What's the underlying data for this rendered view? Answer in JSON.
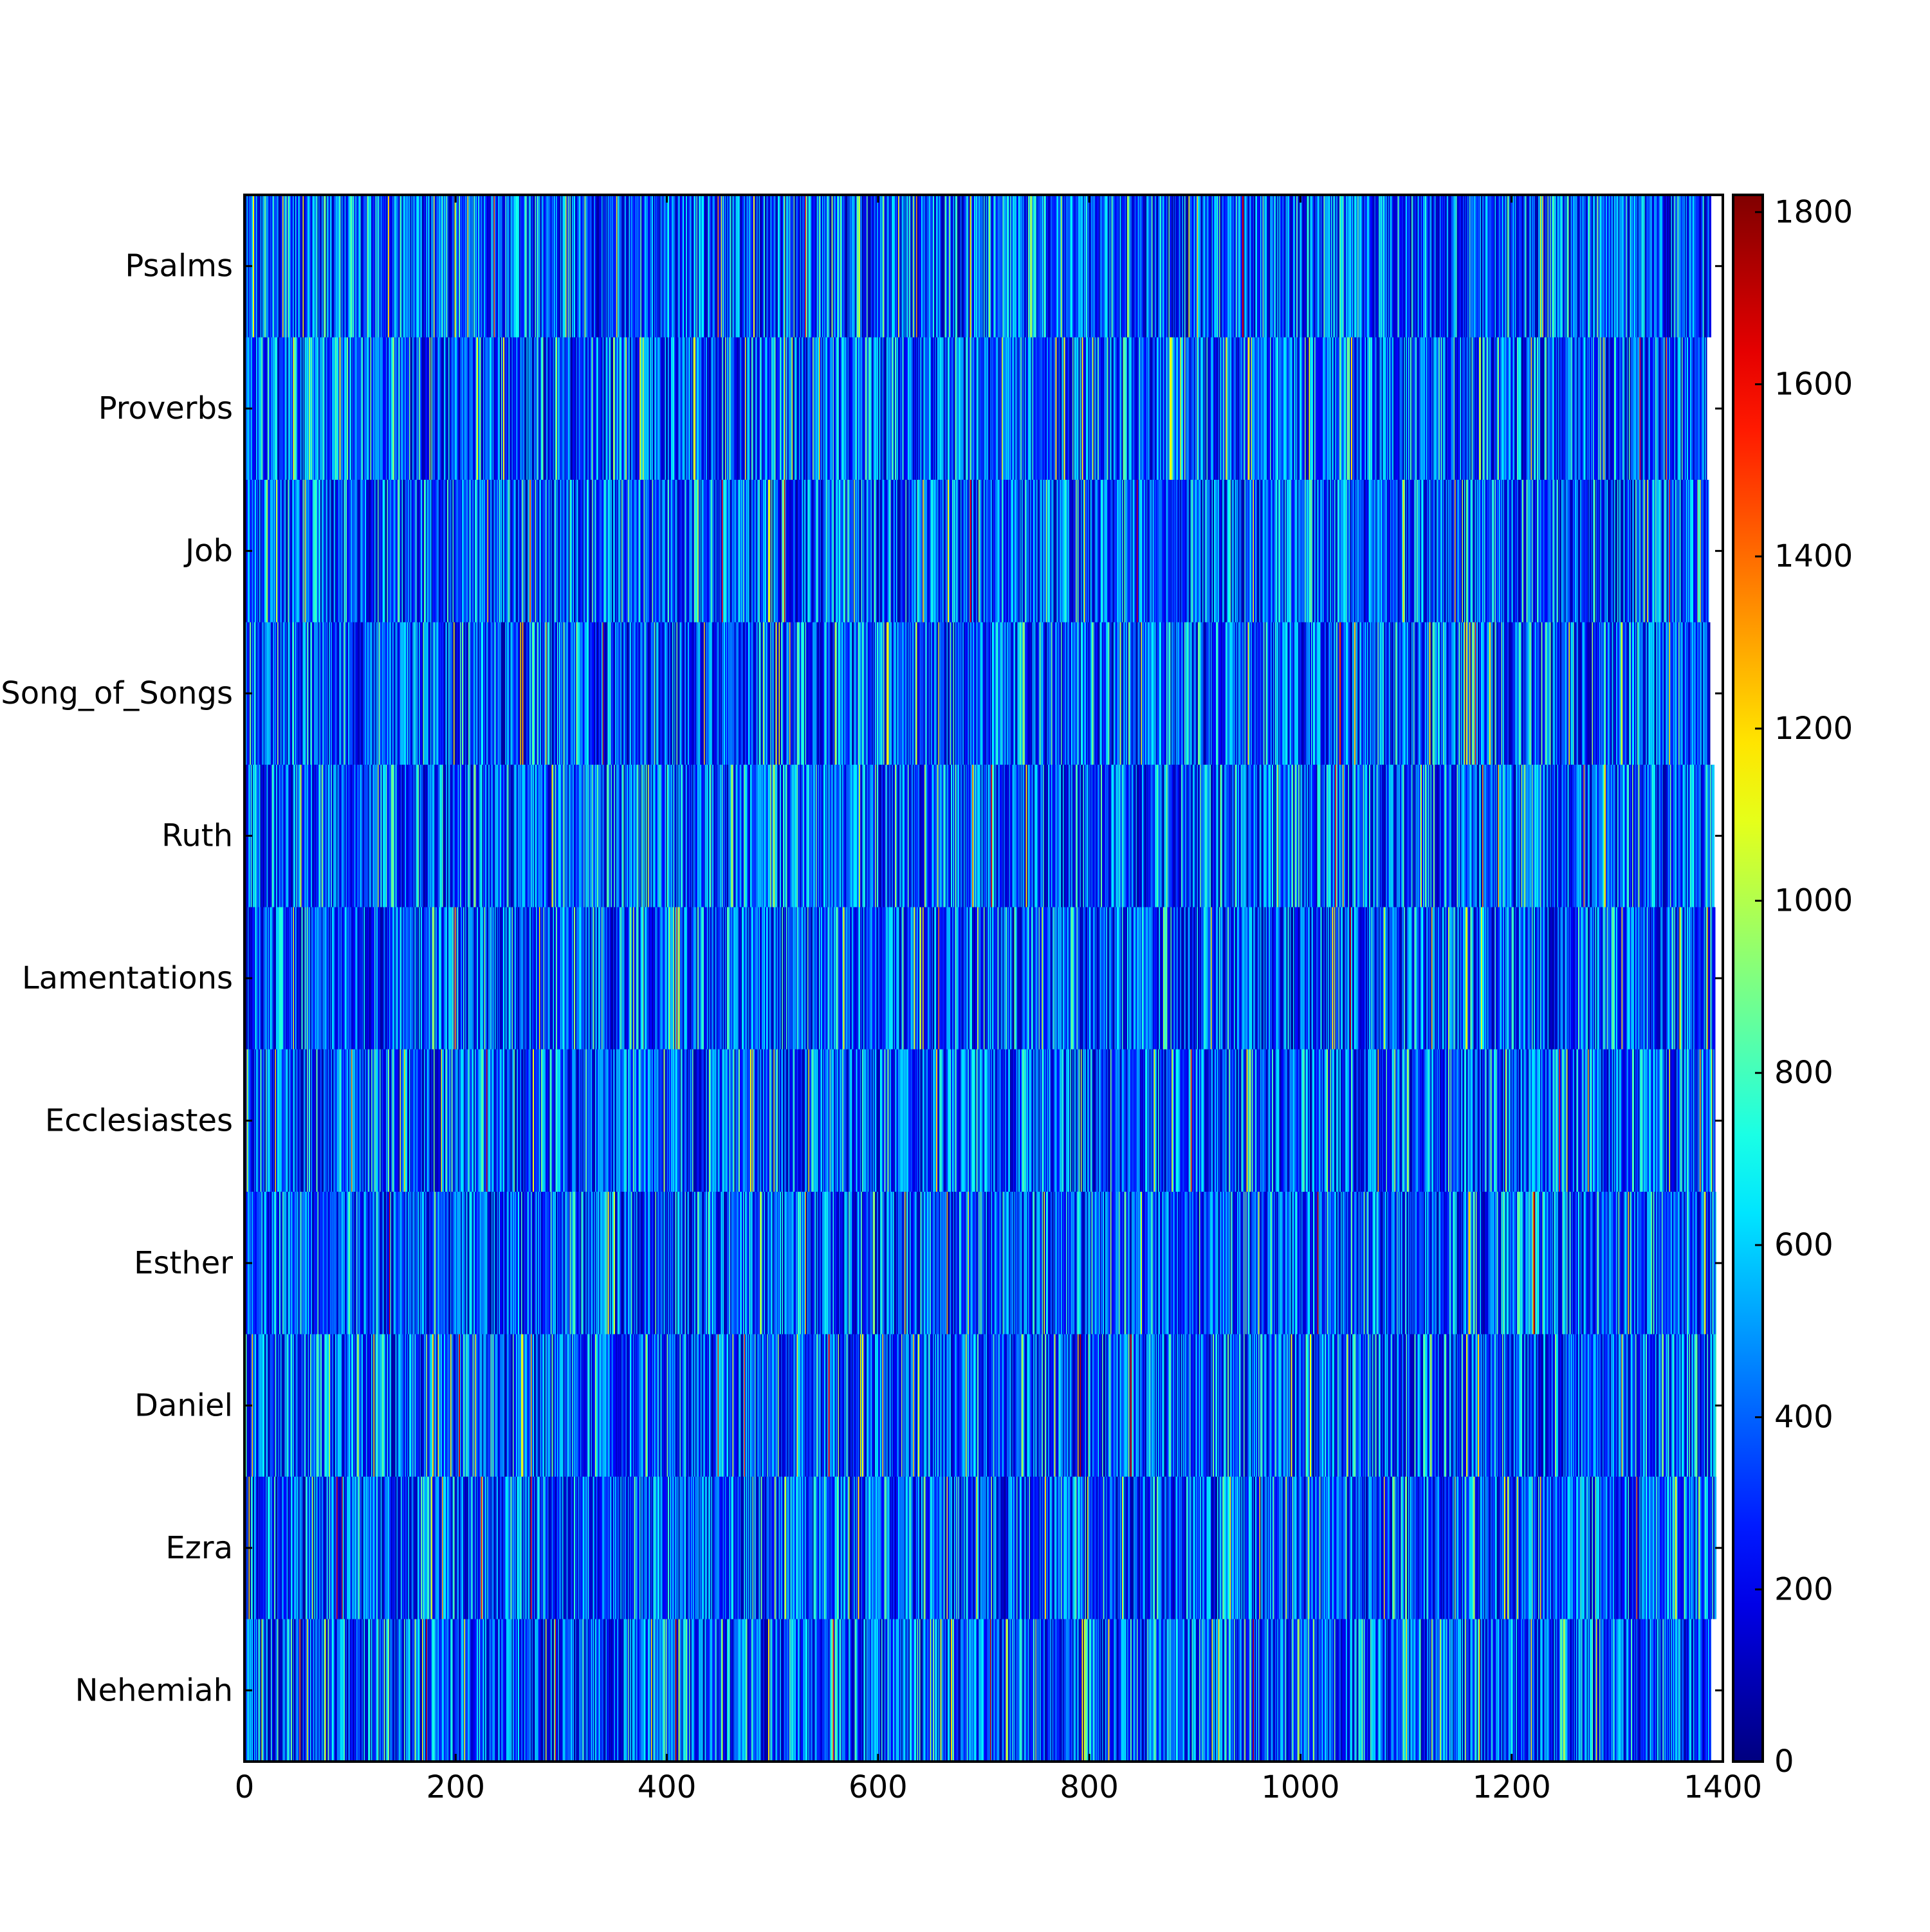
{
  "chart_data": {
    "type": "heatmap",
    "title": "",
    "xlabel": "",
    "ylabel": "",
    "rows": [
      "Psalms",
      "Proverbs",
      "Job",
      "Song_of_Songs",
      "Ruth",
      "Lamentations",
      "Ecclesiastes",
      "Esther",
      "Daniel",
      "Ezra",
      "Nehemiah"
    ],
    "x_range": [
      0,
      1400
    ],
    "row_lengths": [
      1389,
      1385,
      1387,
      1388,
      1392,
      1393,
      1393,
      1394,
      1394,
      1394,
      1389
    ],
    "x_ticks": [
      "0",
      "200",
      "400",
      "600",
      "800",
      "1000",
      "1200",
      "1400"
    ],
    "colorbar": {
      "range": [
        0,
        1820
      ],
      "ticks": [
        "0",
        "200",
        "400",
        "600",
        "800",
        "1000",
        "1200",
        "1400",
        "1600",
        "1800"
      ],
      "colormap": "jet"
    },
    "value_distribution": {
      "description": "Values mostly 150-600 (blue), occasional peaks up to ~1200 (yellow) and rare ~1700 (dark red)",
      "typical_min": 50,
      "typical_max": 650,
      "peak_max": 1750
    }
  }
}
